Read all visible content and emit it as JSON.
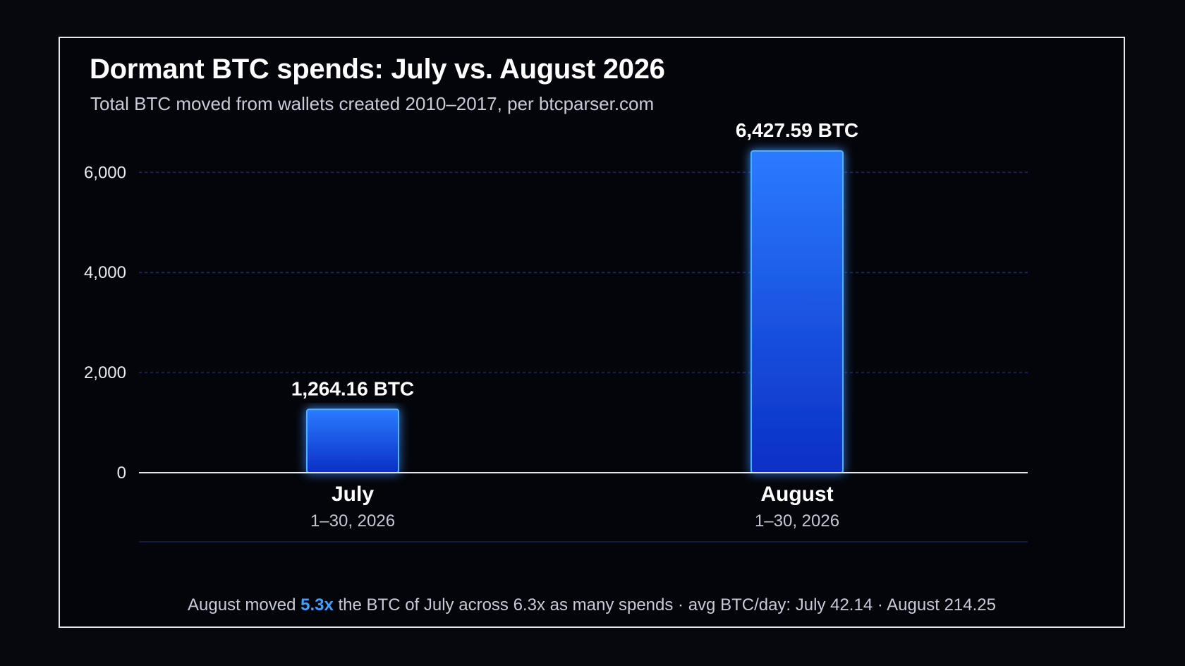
{
  "title": "Dormant BTC spends: July vs. August 2026",
  "subtitle": "Total BTC moved from wallets created 2010–2017, per btcparser.com",
  "footnote": {
    "prefix": "August moved ",
    "highlight": "5.3x",
    "suffix": " the BTC of July across 6.3x as many spends · avg BTC/day: July 42.14 · August 214.25"
  },
  "colors": {
    "background": "#04050b",
    "bar_top": "#2b7bff",
    "bar_bottom": "#0b2fc4",
    "bar_edge": "#4fb2ff",
    "grid": "#1d2a6b",
    "highlight": "#3ea0ff"
  },
  "chart_data": {
    "type": "bar",
    "categories": [
      "July",
      "August"
    ],
    "category_sublabels": [
      "1–30, 2026",
      "1–30, 2026"
    ],
    "values": [
      1264.16,
      6427.59
    ],
    "value_labels": [
      "1,264.16 BTC",
      "6,427.59 BTC"
    ],
    "yticks": [
      0,
      2000,
      4000,
      6000
    ],
    "ytick_labels": [
      "0",
      "2,000",
      "4,000",
      "6,000"
    ],
    "ylim": [
      0,
      6700
    ],
    "grid": true,
    "title": "Dormant BTC spends: July vs. August 2026",
    "xlabel": "",
    "ylabel": ""
  }
}
